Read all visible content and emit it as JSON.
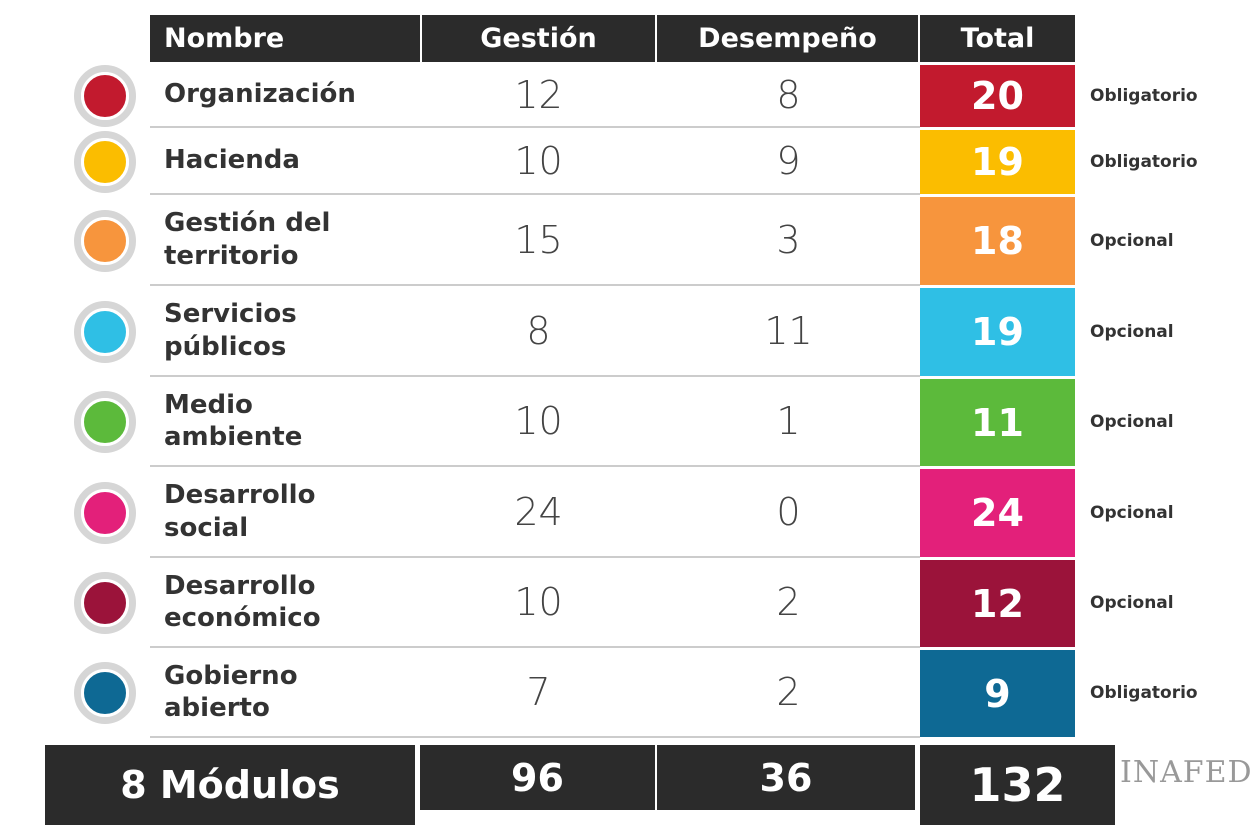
{
  "header": {
    "columns": [
      "Nombre",
      "Gestión",
      "Desempeño",
      "Total"
    ]
  },
  "table": {
    "rows": [
      {
        "name": "Organización",
        "gestion": 12,
        "desempeno": 8,
        "total": 20,
        "status": "Obligatorio",
        "color": "#c21a2e"
      },
      {
        "name": "Hacienda",
        "gestion": 10,
        "desempeno": 9,
        "total": 19,
        "status": "Obligatorio",
        "color": "#fbbd00"
      },
      {
        "name": "Gestión del\nterritorio",
        "gestion": 15,
        "desempeno": 3,
        "total": 18,
        "status": "Opcional",
        "color": "#f7953d"
      },
      {
        "name": "Servicios\npúblicos",
        "gestion": 8,
        "desempeno": 11,
        "total": 19,
        "status": "Opcional",
        "color": "#2fbfe5"
      },
      {
        "name": "Medio\nambiente",
        "gestion": 10,
        "desempeno": 1,
        "total": 11,
        "status": "Opcional",
        "color": "#5cba3b"
      },
      {
        "name": "Desarrollo\nsocial",
        "gestion": 24,
        "desempeno": 0,
        "total": 24,
        "status": "Opcional",
        "color": "#e3207a"
      },
      {
        "name": "Desarrollo\neconómico",
        "gestion": 10,
        "desempeno": 2,
        "total": 12,
        "status": "Opcional",
        "color": "#9b133a"
      },
      {
        "name": "Gobierno\nabierto",
        "gestion": 7,
        "desempeno": 2,
        "total": 9,
        "status": "Obligatorio",
        "color": "#0e6994"
      }
    ]
  },
  "footer": {
    "label": "8 Módulos",
    "gestion": 96,
    "desempeno": 36,
    "total": 132
  },
  "logo": "INAFED"
}
